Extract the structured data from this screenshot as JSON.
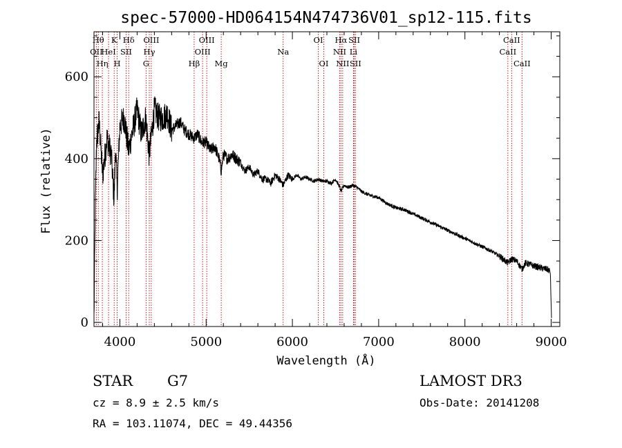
{
  "chart_data": {
    "type": "line",
    "title": "spec-57000-HD064154N474736V01_sp12-115.fits",
    "xlabel": "Wavelength (Å)",
    "ylabel": "Flux (relative)",
    "xlim": [
      3700,
      9100
    ],
    "ylim": [
      -10,
      710
    ],
    "xticks": [
      4000,
      5000,
      6000,
      7000,
      8000,
      9000
    ],
    "yticks": [
      0,
      200,
      400,
      600
    ],
    "spectrum_anchors": {
      "x": [
        3700,
        3715,
        3730,
        3760,
        3800,
        3850,
        3900,
        3933,
        3950,
        3968,
        4000,
        4050,
        4101,
        4150,
        4200,
        4250,
        4300,
        4340,
        4400,
        4450,
        4500,
        4550,
        4600,
        4650,
        4700,
        4750,
        4800,
        4861,
        4900,
        4950,
        5000,
        5050,
        5100,
        5150,
        5175,
        5200,
        5250,
        5300,
        5350,
        5400,
        5450,
        5500,
        5550,
        5600,
        5650,
        5700,
        5750,
        5800,
        5850,
        5893,
        5950,
        6000,
        6050,
        6100,
        6150,
        6200,
        6250,
        6300,
        6350,
        6400,
        6450,
        6500,
        6550,
        6563,
        6600,
        6650,
        6700,
        6750,
        6800,
        6900,
        7000,
        7100,
        7200,
        7300,
        7400,
        7500,
        7600,
        7700,
        7800,
        7900,
        8000,
        8100,
        8200,
        8300,
        8400,
        8498,
        8542,
        8600,
        8662,
        8700,
        8750,
        8800,
        8850,
        8900,
        8950,
        8990,
        9000,
        9005
      ],
      "y": [
        10,
        280,
        440,
        490,
        360,
        450,
        410,
        300,
        430,
        320,
        480,
        500,
        420,
        470,
        520,
        460,
        500,
        410,
        520,
        500,
        500,
        510,
        470,
        480,
        490,
        470,
        460,
        450,
        460,
        440,
        440,
        420,
        430,
        400,
        370,
        410,
        400,
        410,
        400,
        390,
        370,
        380,
        360,
        370,
        350,
        350,
        340,
        360,
        350,
        335,
        360,
        350,
        360,
        350,
        355,
        350,
        345,
        350,
        345,
        345,
        340,
        350,
        330,
        320,
        335,
        330,
        335,
        330,
        320,
        310,
        305,
        290,
        280,
        275,
        265,
        255,
        245,
        235,
        225,
        215,
        205,
        195,
        185,
        175,
        162,
        145,
        155,
        150,
        130,
        145,
        142,
        138,
        135,
        132,
        130,
        125,
        40,
        5
      ]
    },
    "emission_lines": [
      {
        "wave": 3727,
        "name": "OII",
        "row": 2
      },
      {
        "wave": 3750,
        "name": "Hθ",
        "row": 1
      },
      {
        "wave": 3797,
        "name": "Hη",
        "row": 3
      },
      {
        "wave": 3869,
        "name": "HeI",
        "row": 2
      },
      {
        "wave": 3934,
        "name": "K",
        "row": 1
      },
      {
        "wave": 3969,
        "name": "H",
        "row": 3
      },
      {
        "wave": 4072,
        "name": "SII",
        "row": 2
      },
      {
        "wave": 4102,
        "name": "Hδ",
        "row": 1
      },
      {
        "wave": 4304,
        "name": "G",
        "row": 3
      },
      {
        "wave": 4341,
        "name": "Hγ",
        "row": 2
      },
      {
        "wave": 4364,
        "name": "OIII",
        "row": 1
      },
      {
        "wave": 4861,
        "name": "Hβ",
        "row": 3
      },
      {
        "wave": 4959,
        "name": "OIII",
        "row": 2
      },
      {
        "wave": 5007,
        "name": "OIII",
        "row": 1
      },
      {
        "wave": 5175,
        "name": "Mg",
        "row": 3
      },
      {
        "wave": 5893,
        "name": "Na",
        "row": 2
      },
      {
        "wave": 6300,
        "name": "OI",
        "row": 1
      },
      {
        "wave": 6364,
        "name": "OI",
        "row": 3
      },
      {
        "wave": 6548,
        "name": "NII",
        "row": 2
      },
      {
        "wave": 6563,
        "name": "Hα",
        "row": 1
      },
      {
        "wave": 6583,
        "name": "NII",
        "row": 3
      },
      {
        "wave": 6708,
        "name": "Li",
        "row": 2
      },
      {
        "wave": 6717,
        "name": "SII",
        "row": 1
      },
      {
        "wave": 6731,
        "name": "SII",
        "row": 3
      },
      {
        "wave": 8498,
        "name": "CaII",
        "row": 2
      },
      {
        "wave": 8542,
        "name": "CaII",
        "row": 1
      },
      {
        "wave": 8662,
        "name": "CaII",
        "row": 3
      }
    ]
  },
  "info": {
    "class_label": "STAR",
    "subclass": "G7",
    "survey": "LAMOST DR3",
    "cz": "cz = 8.9 ± 2.5 km/s",
    "obs_date": "Obs-Date: 20141208",
    "coords": "RA = 103.11074, DEC =  49.44356"
  },
  "colors": {
    "line_marker": "#c00000",
    "spectrum": "#000000",
    "axis": "#000000"
  }
}
